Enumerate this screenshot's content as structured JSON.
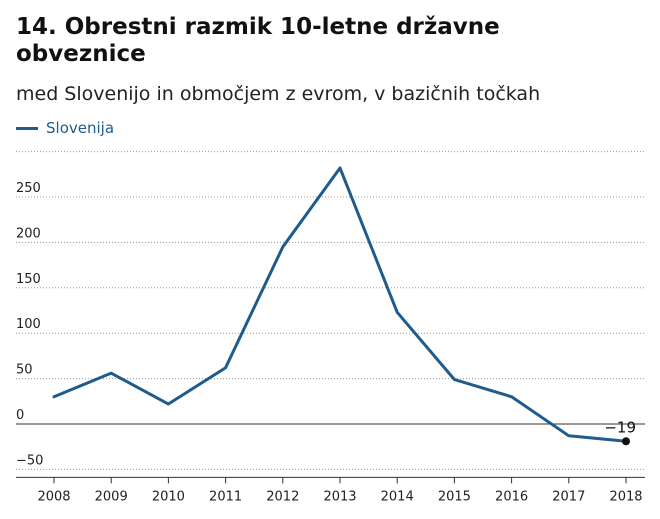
{
  "chart_data": {
    "type": "line",
    "title": "14. Obrestni razmik 10-letne državne obveznice",
    "subtitle": "med Slovenijo in območjem z evrom, v bazičnih točkah",
    "x": [
      "2008",
      "2009",
      "2010",
      "2011",
      "2012",
      "2013",
      "2014",
      "2015",
      "2016",
      "2017",
      "2018"
    ],
    "series": [
      {
        "name": "Slovenija",
        "color": "#1f5b8c",
        "values": [
          30,
          56,
          22,
          62,
          195,
          282,
          123,
          49,
          30,
          -13,
          -19
        ]
      }
    ],
    "y_ticks": [
      -50,
      0,
      50,
      100,
      150,
      200,
      250
    ],
    "y_tick_labels": [
      "−50",
      "0",
      "50",
      "100",
      "150",
      "200",
      "250"
    ],
    "ylim": [
      -50,
      300
    ],
    "grid": "dotted-horizontal",
    "legend_position": "top-left",
    "annotation": {
      "x": "2018",
      "value": -19,
      "label": "−19"
    }
  }
}
